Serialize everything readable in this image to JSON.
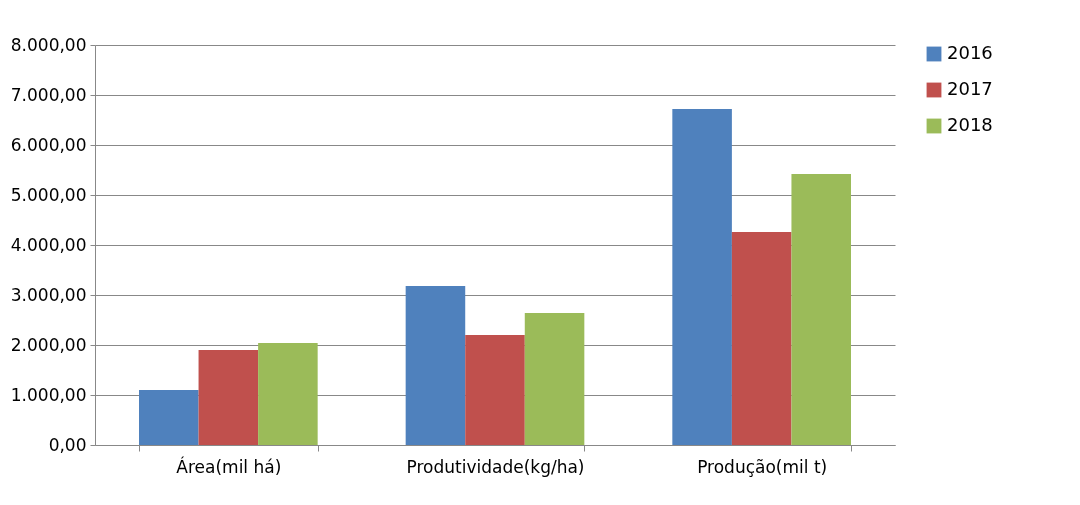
{
  "chart_data": {
    "type": "bar",
    "categories": [
      "Área(mil há)",
      "Produtividade(kg/ha)",
      "Produção(mil t)"
    ],
    "series": [
      {
        "name": "2016",
        "color": "#4f81bd",
        "values": [
          1100,
          3180,
          6720
        ]
      },
      {
        "name": "2017",
        "color": "#c0504d",
        "values": [
          1900,
          2200,
          4260
        ]
      },
      {
        "name": "2018",
        "color": "#9bbb59",
        "values": [
          2040,
          2640,
          5420
        ]
      }
    ],
    "ylim": [
      0,
      8000
    ],
    "yticks": [
      {
        "value": 0,
        "label": "0,00"
      },
      {
        "value": 1000,
        "label": "1.000,00"
      },
      {
        "value": 2000,
        "label": "2.000,00"
      },
      {
        "value": 3000,
        "label": "3.000,00"
      },
      {
        "value": 4000,
        "label": "4.000,00"
      },
      {
        "value": 5000,
        "label": "5.000,00"
      },
      {
        "value": 6000,
        "label": "6.000,00"
      },
      {
        "value": 7000,
        "label": "7.000,00"
      },
      {
        "value": 8000,
        "label": "8.000,00"
      }
    ],
    "grid": "y",
    "legend": "right"
  }
}
